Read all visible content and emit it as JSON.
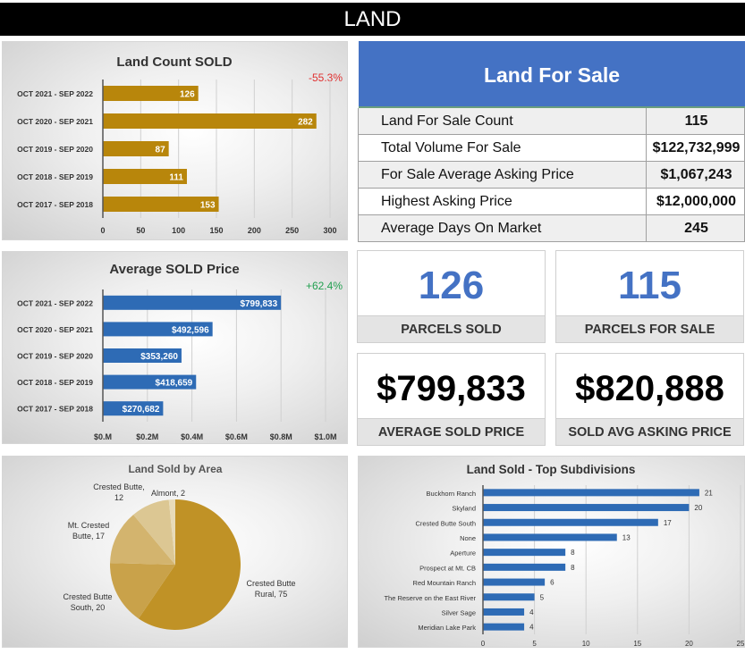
{
  "header": {
    "title": "LAND"
  },
  "colors": {
    "gold": "#b8860b",
    "blue": "#2e6bb5",
    "tableHeader": "#4472c4",
    "negative": "#e03030",
    "positive": "#22a050"
  },
  "for_sale_table": {
    "title": "Land For Sale",
    "rows": [
      {
        "label": "Land For Sale Count",
        "value": "115"
      },
      {
        "label": "Total Volume For Sale",
        "value": "$122,732,999"
      },
      {
        "label": "For Sale Average Asking Price",
        "value": "$1,067,243"
      },
      {
        "label": "Highest Asking Price",
        "value": "$12,000,000"
      },
      {
        "label": "Average Days On Market",
        "value": "245"
      }
    ]
  },
  "kpis": [
    {
      "value": "126",
      "caption": "PARCELS SOLD"
    },
    {
      "value": "115",
      "caption": "PARCELS FOR SALE"
    },
    {
      "value": "$799,833",
      "caption": "AVERAGE SOLD PRICE"
    },
    {
      "value": "$820,888",
      "caption": "SOLD AVG ASKING PRICE"
    }
  ],
  "chart_data": [
    {
      "type": "bar",
      "orientation": "horizontal",
      "title": "Land Count SOLD",
      "annotation": "-55.3%",
      "categories": [
        "OCT 2021 - SEP 2022",
        "OCT 2020 - SEP 2021",
        "OCT 2019 - SEP 2020",
        "OCT 2018 - SEP 2019",
        "OCT 2017 - SEP 2018"
      ],
      "values": [
        126,
        282,
        87,
        111,
        153
      ],
      "labels": [
        "126",
        "282",
        "87",
        "111",
        "153"
      ],
      "xlim": [
        0,
        300
      ],
      "ticks": [
        0,
        50,
        100,
        150,
        200,
        250,
        300
      ],
      "tick_labels": [
        "0",
        "50",
        "100",
        "150",
        "200",
        "250",
        "300"
      ],
      "grid": true
    },
    {
      "type": "bar",
      "orientation": "horizontal",
      "title": "Average SOLD Price",
      "annotation": "+62.4%",
      "categories": [
        "OCT 2021 - SEP 2022",
        "OCT 2020 - SEP 2021",
        "OCT 2019 - SEP 2020",
        "OCT 2018 - SEP 2019",
        "OCT 2017 - SEP 2018"
      ],
      "values": [
        799833,
        492596,
        353260,
        418659,
        270682
      ],
      "labels": [
        "$799,833",
        "$492,596",
        "$353,260",
        "$418,659",
        "$270,682"
      ],
      "xlim": [
        0,
        1000000
      ],
      "ticks": [
        0,
        200000,
        400000,
        600000,
        800000,
        1000000
      ],
      "tick_labels": [
        "$0.M",
        "$0.2M",
        "$0.4M",
        "$0.6M",
        "$0.8M",
        "$1.0M"
      ],
      "grid": true
    },
    {
      "type": "pie",
      "title": "Land Sold by Area",
      "slices": [
        {
          "label": "Crested Butte Rural",
          "value": 75,
          "color": "#c09226"
        },
        {
          "label": "Crested Butte South",
          "value": 20,
          "color": "#c9a24a"
        },
        {
          "label": "Mt. Crested Butte",
          "value": 17,
          "color": "#d3b46e"
        },
        {
          "label": "Crested Butte",
          "value": 12,
          "color": "#dcc793"
        },
        {
          "label": "Almont",
          "value": 2,
          "color": "#e8dbb8"
        }
      ],
      "data_labels": [
        "Crested Butte Rural, 75",
        "Crested Butte South, 20",
        "Mt. Crested Butte, 17",
        "Crested Butte, 12",
        "Almont, 2"
      ]
    },
    {
      "type": "bar",
      "orientation": "horizontal",
      "title": "Land Sold - Top Subdivisions",
      "categories": [
        "Buckhorn Ranch",
        "Skyland",
        "Crested Butte South",
        "None",
        "Aperture",
        "Prospect at Mt. CB",
        "Red Mountain Ranch",
        "The Reserve on the East River",
        "Silver Sage",
        "Meridian Lake Park"
      ],
      "values": [
        21,
        20,
        17,
        13,
        8,
        8,
        6,
        5,
        4,
        4
      ],
      "xlim": [
        0,
        25
      ],
      "ticks": [
        0,
        5,
        10,
        15,
        20,
        25
      ],
      "tick_labels": [
        "0",
        "5",
        "10",
        "15",
        "20",
        "25"
      ],
      "grid": true
    }
  ]
}
